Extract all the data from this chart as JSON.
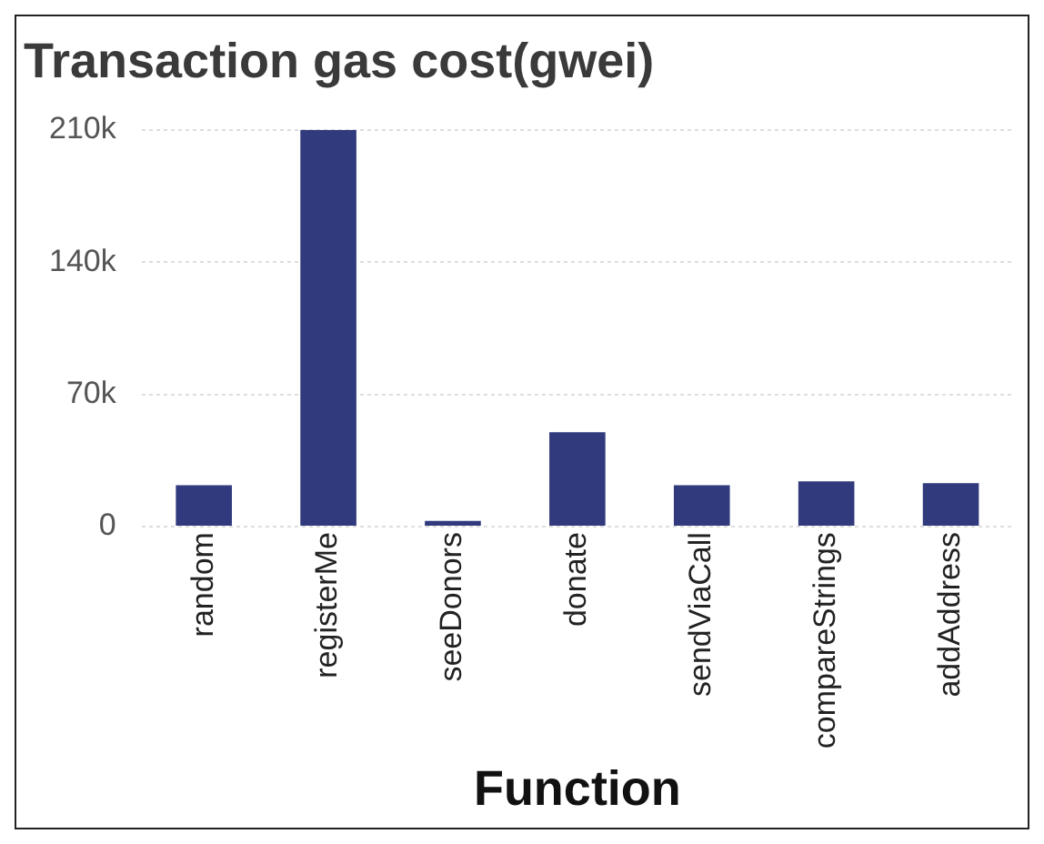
{
  "chart_data": {
    "type": "bar",
    "title": "Transaction gas cost(gwei)",
    "xlabel": "Function",
    "categories": [
      "random",
      "registerMe",
      "seeDonors",
      "donate",
      "sendViaCall",
      "compareStrings",
      "addAddress"
    ],
    "values": [
      22000,
      210000,
      3000,
      50000,
      22000,
      24000,
      23000
    ],
    "color": "#313a7d",
    "ylim": [
      0,
      210000
    ],
    "yticks": [
      {
        "value": 0,
        "label": "0"
      },
      {
        "value": 70000,
        "label": "70k"
      },
      {
        "value": 140000,
        "label": "140k"
      },
      {
        "value": 210000,
        "label": "210k"
      }
    ],
    "grid": "y",
    "legend": false
  }
}
